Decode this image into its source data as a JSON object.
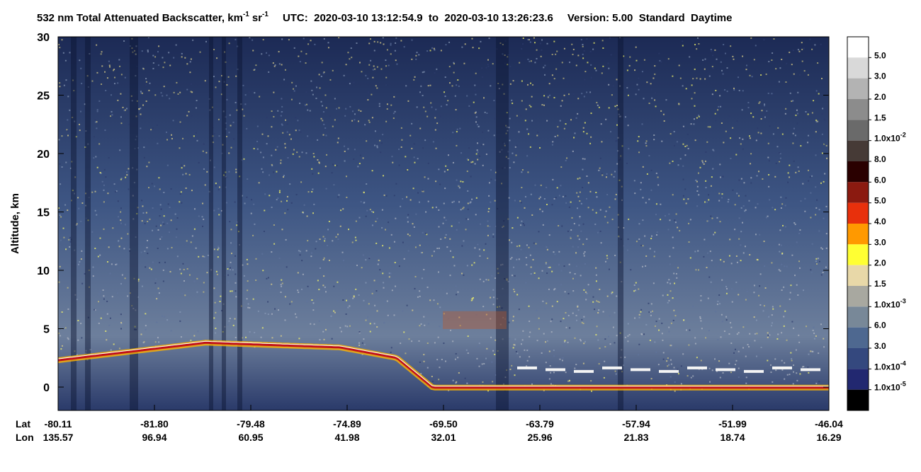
{
  "chart_data": {
    "type": "lidar-curtain",
    "title": {
      "main": "532 nm Total Attenuated Backscatter, km",
      "exp1": "-1",
      "unit2": "sr",
      "exp2": "-1",
      "time": "UTC:  2020-03-10 13:12:54.9  to  2020-03-10 13:26:23.6",
      "version": "Version: 5.00  Standard  Daytime"
    },
    "ylabel": "Altitude, km",
    "ylim": [
      -2,
      30
    ],
    "yticks": [
      0,
      5,
      10,
      15,
      20,
      25,
      30
    ],
    "x_row_labels": [
      "Lat",
      "Lon"
    ],
    "lat": [
      "-80.11",
      "-81.80",
      "-79.48",
      "-74.89",
      "-69.50",
      "-63.79",
      "-57.94",
      "-51.99",
      "-46.04"
    ],
    "lon": [
      "135.57",
      "96.94",
      "60.95",
      "41.98",
      "32.01",
      "25.96",
      "21.83",
      "18.74",
      "16.29"
    ],
    "colorbar": {
      "colors": [
        "#ffffff",
        "#d9d9d9",
        "#b3b3b3",
        "#8c8c8c",
        "#6a6a6a",
        "#463a36",
        "#2a0000",
        "#8b1a10",
        "#e8300c",
        "#ff9900",
        "#ffff33",
        "#e8d8a8",
        "#a8a8a0",
        "#788898",
        "#4e6890",
        "#34487e",
        "#222870",
        "#000000"
      ],
      "labels": [
        {
          "base": "5.0"
        },
        {
          "base": "3.0"
        },
        {
          "base": "2.0"
        },
        {
          "base": "1.5"
        },
        {
          "base": "1.0x10",
          "exp": "-2"
        },
        {
          "base": "8.0"
        },
        {
          "base": "6.0"
        },
        {
          "base": "5.0"
        },
        {
          "base": "4.0"
        },
        {
          "base": "3.0"
        },
        {
          "base": "2.0"
        },
        {
          "base": "1.5"
        },
        {
          "base": "1.0x10",
          "exp": "-3"
        },
        {
          "base": "6.0"
        },
        {
          "base": "3.0"
        },
        {
          "base": "1.0x10",
          "exp": "-4"
        },
        {
          "base": "1.0x10",
          "exp": "-5"
        }
      ]
    }
  }
}
